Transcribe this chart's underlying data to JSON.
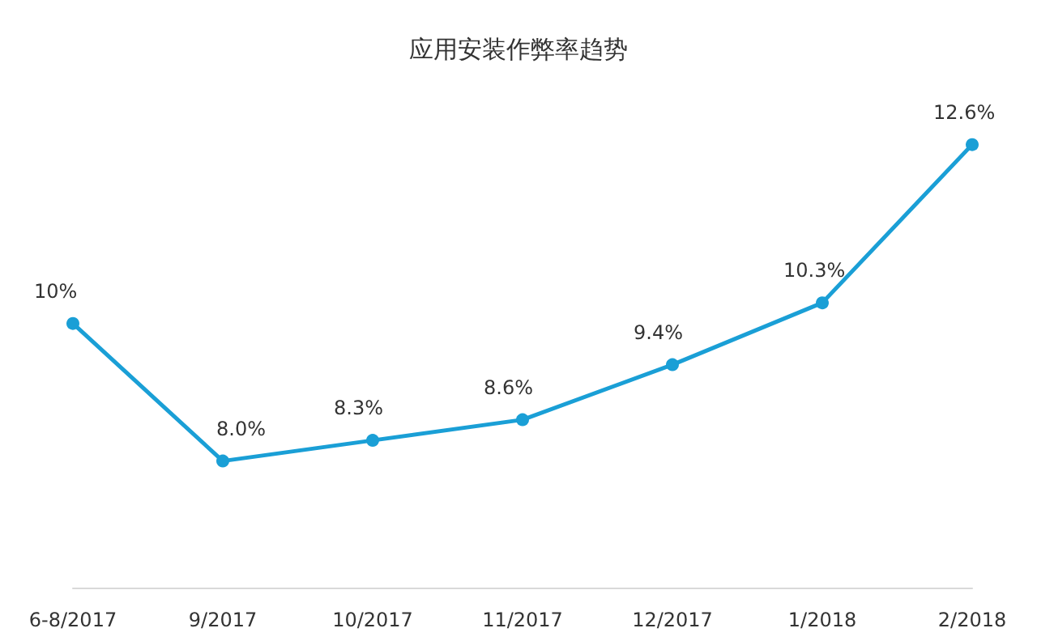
{
  "chart_data": {
    "type": "line",
    "title": "应用安装作弊率趋势",
    "categories": [
      "6-8/2017",
      "9/2017",
      "10/2017",
      "11/2017",
      "12/2017",
      "1/2018",
      "2/2018"
    ],
    "values": [
      10,
      8.0,
      8.3,
      8.6,
      9.4,
      10.3,
      12.6
    ],
    "value_labels": [
      "10%",
      "8.0%",
      "8.3%",
      "8.6%",
      "9.4%",
      "10.3%",
      "12.6%"
    ],
    "color": "#1a9fd6",
    "marker": "circle",
    "tick_labels": "x"
  }
}
